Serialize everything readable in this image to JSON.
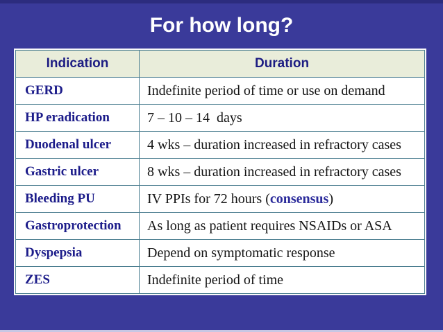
{
  "slide": {
    "title": "For how long?"
  },
  "colors": {
    "background_blue": "#3A3A9A",
    "top_edge_navy": "#2C2C7E",
    "bottom_edge_lavender": "#C7C7E4",
    "header_row_beige": "#E9EDDA",
    "cell_border_teal": "#4D7F91",
    "label_navy": "#1C1C8A",
    "title_white": "#FFFFFF",
    "duration_black": "#141414",
    "consensus_navy": "#2B2B9B"
  },
  "table": {
    "headers": {
      "indication": "Indication",
      "duration": "Duration"
    },
    "rows": [
      {
        "indication": "GERD",
        "duration": "Indefinite period of time or use on demand"
      },
      {
        "indication": "HP eradication",
        "duration": "7 – 10 – 14  days"
      },
      {
        "indication": "Duodenal ulcer",
        "duration": "4 wks – duration increased in refractory cases"
      },
      {
        "indication": "Gastric ulcer",
        "duration": "8 wks – duration increased in refractory cases"
      },
      {
        "indication": "Bleeding PU",
        "duration_prefix": "IV PPIs for 72 hours (",
        "duration_highlight": "consensus",
        "duration_suffix": ")"
      },
      {
        "indication": "Gastroprotection",
        "duration": "As long as patient requires NSAIDs or ASA"
      },
      {
        "indication": "Dyspepsia",
        "duration": "Depend on symptomatic response"
      },
      {
        "indication": "ZES",
        "duration": "Indefinite period of time"
      }
    ]
  }
}
